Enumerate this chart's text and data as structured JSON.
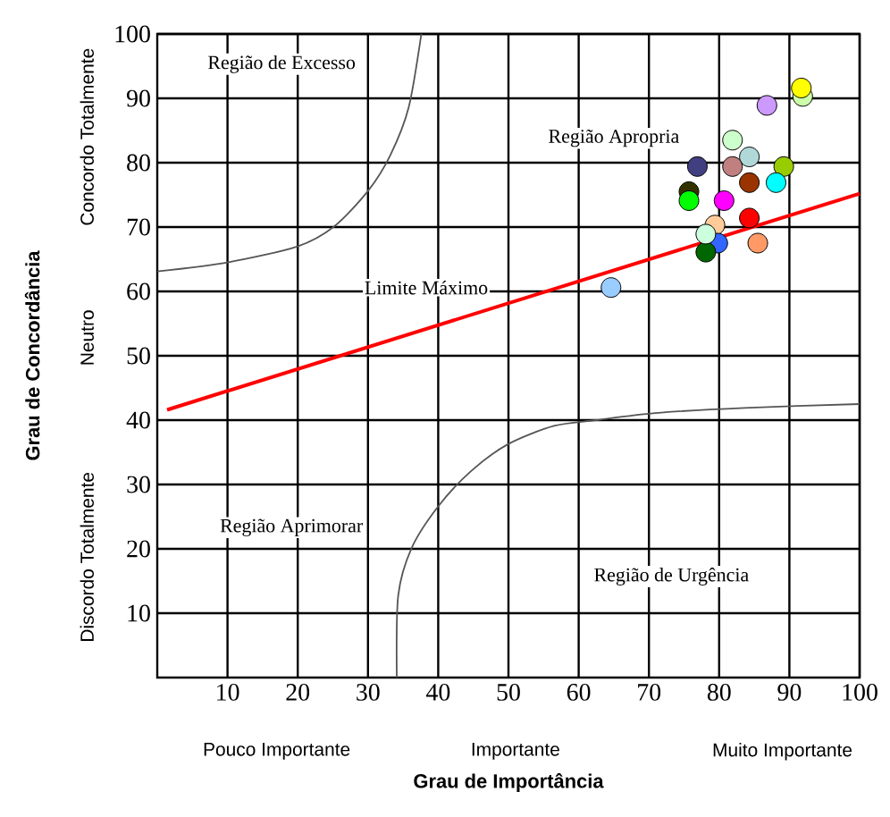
{
  "chart_data": {
    "type": "scatter",
    "xlabel": "Grau de Importância",
    "ylabel": "Grau de Concordância",
    "xlim": [
      0,
      100
    ],
    "ylim": [
      0,
      100
    ],
    "xticks": [
      10,
      20,
      30,
      40,
      50,
      60,
      70,
      80,
      90,
      100
    ],
    "yticks": [
      10,
      20,
      30,
      40,
      50,
      60,
      70,
      80,
      90,
      100
    ],
    "grid": true,
    "marker": "circle",
    "series": [
      {
        "type": "line",
        "marker": "none",
        "color": "#555555",
        "x": [
          0,
          10,
          20,
          25.2,
          30,
          33.2,
          35.8,
          37.6
        ],
        "values": [
          63.1,
          64.5,
          67.0,
          70.1,
          75.6,
          81.2,
          88.6,
          100
        ]
      },
      {
        "type": "line",
        "marker": "none",
        "color": "#555555",
        "x": [
          34.1,
          34.3,
          36.2,
          40,
          44.7,
          50,
          56.5,
          62.5,
          70.9,
          83.6,
          100
        ],
        "values": [
          0,
          12.7,
          20.1,
          26.6,
          32.1,
          36.3,
          39.1,
          40,
          41.1,
          41.9,
          42.5
        ]
      },
      {
        "type": "line",
        "marker": "none",
        "color": "#ff0000",
        "x": [
          1.4,
          100
        ],
        "values": [
          41.6,
          75.2
        ]
      },
      {
        "x": [
          91.9,
          91.7,
          86.8,
          81.9,
          84.3,
          76.9,
          81.9,
          89.2,
          84.3,
          88.1,
          75.7,
          75.7,
          80.7,
          84.3,
          79.4,
          79.8,
          78.1,
          78.1,
          85.5,
          64.6
        ],
        "values": [
          90.3,
          91.6,
          88.9,
          83.5,
          80.9,
          79.4,
          79.4,
          79.4,
          76.9,
          76.9,
          75.5,
          74.1,
          74.1,
          71.4,
          70.3,
          67.5,
          66.1,
          68.9,
          67.5,
          60.6
        ],
        "colors": [
          "#ccffaa",
          "#ffff00",
          "#cc99ff",
          "#ccffcc",
          "#b0d8d8",
          "#404080",
          "#c08080",
          "#99cc00",
          "#993300",
          "#00ffff",
          "#333300",
          "#00ff00",
          "#ff00ff",
          "#ff0000",
          "#ffcc99",
          "#3366ff",
          "#006600",
          "#ccffdd",
          "#ff9966",
          "#99ccff"
        ]
      }
    ],
    "annotations": [
      "Região de Excesso",
      "Região Apropria",
      "Limite Máximo",
      "Região Aprimorar",
      "Região de Urgência",
      "Pouco Importante",
      "Importante",
      "Muito Importante",
      "Discordo Totalmente",
      "Neutro",
      "Concordo Totalmente"
    ]
  }
}
